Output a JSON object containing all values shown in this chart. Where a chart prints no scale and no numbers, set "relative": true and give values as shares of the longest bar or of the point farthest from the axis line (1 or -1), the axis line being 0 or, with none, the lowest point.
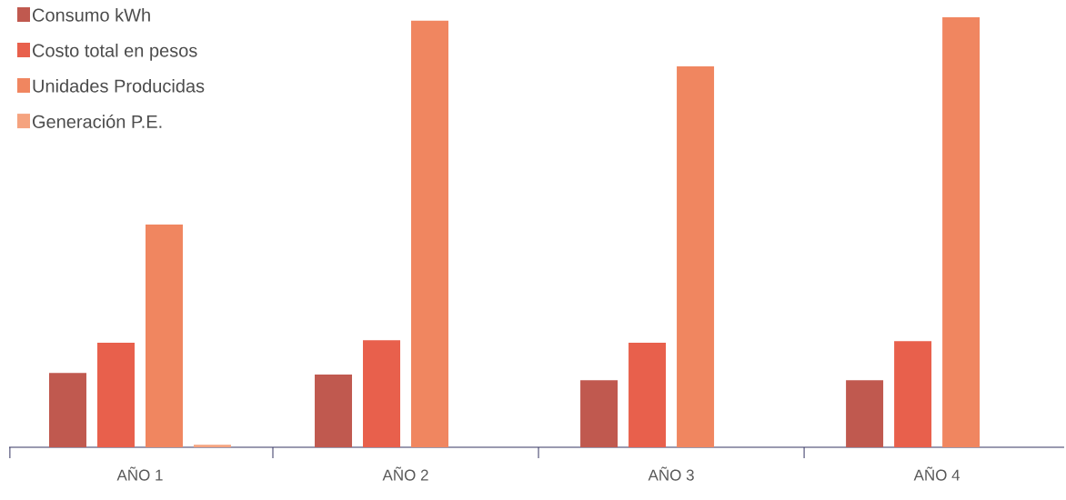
{
  "chart_data": {
    "type": "bar",
    "relative": true,
    "categories": [
      "AÑO 1",
      "AÑO 2",
      "AÑO 3",
      "AÑO 4"
    ],
    "legend": "top left",
    "series": [
      {
        "name": "Consumo kWh",
        "color": "#c0594f",
        "values": [
          0.173,
          0.169,
          0.156,
          0.156
        ]
      },
      {
        "name": "Costo total en pesos",
        "color": "#e8604c",
        "values": [
          0.243,
          0.249,
          0.243,
          0.247
        ]
      },
      {
        "name": "Unidades Producidas",
        "color": "#f08660",
        "values": [
          0.518,
          0.992,
          0.886,
          1
        ]
      },
      {
        "name": "Generación P.E.",
        "color": "#f5a37f",
        "values": [
          0.006,
          null,
          null,
          null
        ]
      }
    ]
  }
}
